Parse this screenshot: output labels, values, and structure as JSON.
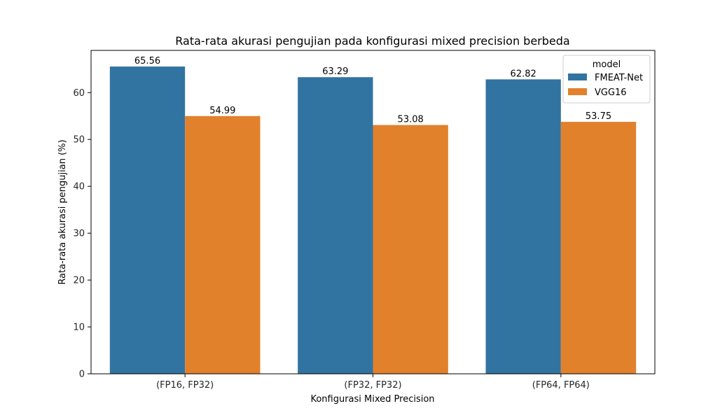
{
  "chart_data": {
    "type": "bar",
    "title": "Rata-rata akurasi pengujian pada konfigurasi mixed precision berbeda",
    "xlabel": "Konfigurasi Mixed Precision",
    "ylabel": "Rata-rata akurasi pengujian (%)",
    "categories": [
      "(FP16, FP32)",
      "(FP32, FP32)",
      "(FP64, FP64)"
    ],
    "series": [
      {
        "name": "FMEAT-Net",
        "values": [
          65.56,
          63.29,
          62.82
        ],
        "color": "#3274a1"
      },
      {
        "name": "VGG16",
        "values": [
          54.99,
          53.08,
          53.75
        ],
        "color": "#e1812c"
      }
    ],
    "ylim": [
      0,
      69
    ],
    "yticks": [
      0,
      10,
      20,
      30,
      40,
      50,
      60
    ],
    "grid": false,
    "legend": {
      "title": "model",
      "placement": "top-right"
    }
  }
}
